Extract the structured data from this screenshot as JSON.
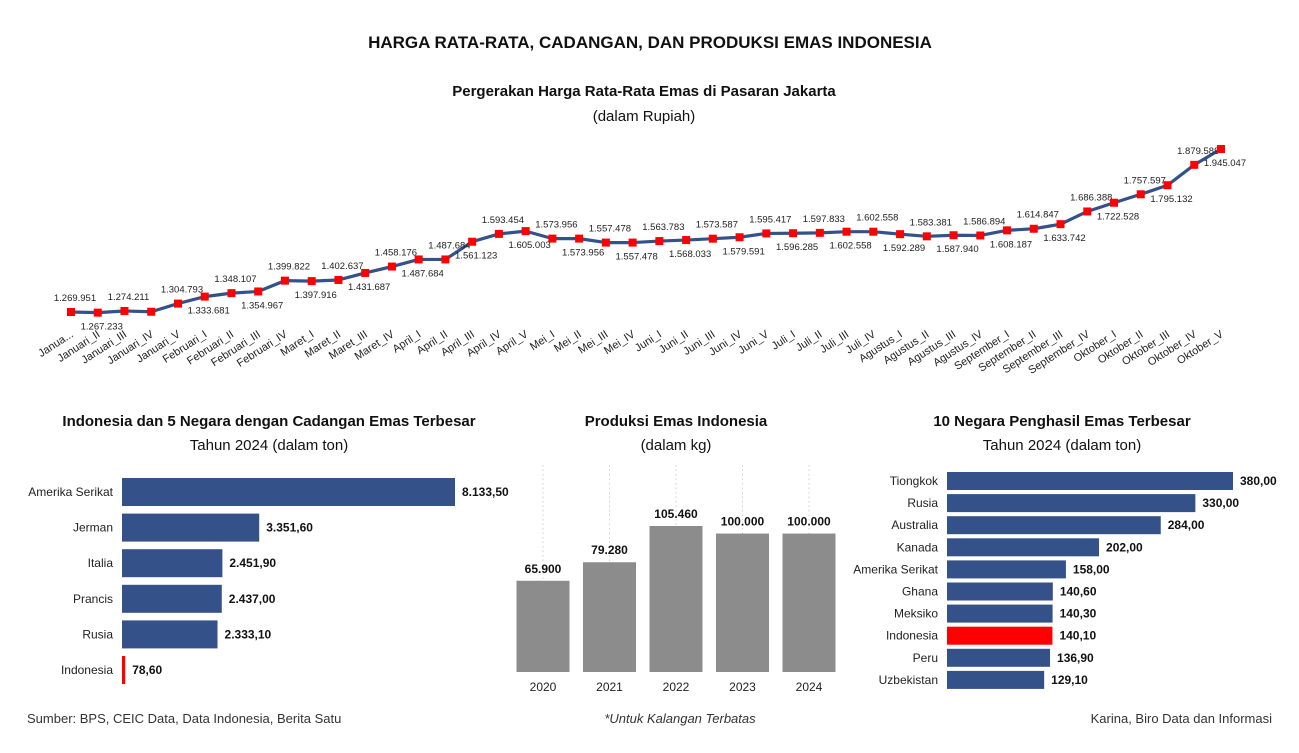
{
  "page_title": "HARGA RATA-RATA, CADANGAN, DAN PRODUKSI EMAS INDONESIA",
  "footer": {
    "source": "Sumber: BPS, CEIC Data, Data Indonesia, Berita Satu",
    "note": "*Untuk Kalangan Terbatas",
    "author": "Karina, Biro Data dan Informasi"
  },
  "colors": {
    "line": "#345289",
    "marker": "#ff0000",
    "bar": "#345289",
    "highlight": "#ff0000",
    "production_bar": "#8c8c8c"
  },
  "chart_data": [
    {
      "type": "line",
      "title": "Pergerakan Harga Rata-Rata Emas di Pasaran Jakarta",
      "subtitle": "(dalam Rupiah)",
      "categories": [
        "Janua...",
        "Januari_II",
        "Januari_III",
        "Januari_IV",
        "Januari_V",
        "Februari_I",
        "Februari_II",
        "Februari_III",
        "Februari_IV",
        "Maret_I",
        "Maret_II",
        "Maret_III",
        "Maret_IV",
        "April_I",
        "April_II",
        "April_III",
        "April_IV",
        "April_V",
        "Mei_I",
        "Mei_II",
        "Mei_III",
        "Mei_IV",
        "Juni_I",
        "Juni_II",
        "Juni_III",
        "Juni_IV",
        "Juni_V",
        "Juli_I",
        "Juli_II",
        "Juli_III",
        "Juli_IV",
        "Agustus_I",
        "Agustus_II",
        "Agustus_III",
        "Agustus_IV",
        "September_I",
        "September_II",
        "September_III",
        "September_IV",
        "Oktober_I",
        "Oktober_II",
        "Oktober_III",
        "Oktober_IV",
        "Oktober_V"
      ],
      "values": [
        1269951,
        1267233,
        1274211,
        1271000,
        1304793,
        1333681,
        1348107,
        1354967,
        1399822,
        1397916,
        1402637,
        1431687,
        1458176,
        1487684,
        1487684,
        1561123,
        1593454,
        1605003,
        1573956,
        1573956,
        1557478,
        1557478,
        1563783,
        1568033,
        1573587,
        1579591,
        1595417,
        1596285,
        1597833,
        1602558,
        1602558,
        1592289,
        1583381,
        1587940,
        1586894,
        1608187,
        1614847,
        1633742,
        1686388,
        1722528,
        1757597,
        1795132,
        1879589,
        1945047
      ],
      "labels": [
        "1.269.951",
        "1.267.233",
        "1.274.211",
        null,
        "1.304.793",
        "1.333.681",
        "1.348.107",
        "1.354.967",
        "1.399.822",
        "1.397.916",
        "1.402.637",
        "1.431.687",
        "1.458.176",
        "1.487.684",
        "1.487.684",
        "1.561.123",
        "1.593.454",
        "1.605.003",
        "1.573.956",
        "1.573.956",
        "1.557.478",
        "1.557.478",
        "1.563.783",
        "1.568.033",
        "1.573.587",
        "1.579.591",
        "1.595.417",
        "1.596.285",
        "1.597.833",
        "1.602.558",
        "1.602.558",
        "1.592.289",
        "1.583.381",
        "1.587.940",
        "1.586.894",
        "1.608.187",
        "1.614.847",
        "1.633.742",
        "1.686.388",
        "1.722.528",
        "1.757.597",
        "1.795.132",
        "1.879.589",
        "1.945.047"
      ],
      "grid": false
    },
    {
      "type": "bar",
      "orientation": "horizontal",
      "title": "Indonesia dan 5 Negara dengan Cadangan Emas Terbesar",
      "subtitle": "Tahun 2024 (dalam ton)",
      "categories": [
        "Amerika Serikat",
        "Jerman",
        "Italia",
        "Prancis",
        "Rusia",
        "Indonesia"
      ],
      "values": [
        8133.5,
        3351.6,
        2451.9,
        2437.0,
        2333.1,
        78.6
      ],
      "labels": [
        "8.133,50",
        "3.351,60",
        "2.451,90",
        "2.437,00",
        "2.333,10",
        "78,60"
      ],
      "highlight": "Indonesia"
    },
    {
      "type": "bar",
      "orientation": "vertical",
      "title": "Produksi Emas Indonesia",
      "subtitle": "(dalam kg)",
      "categories": [
        "2020",
        "2021",
        "2022",
        "2023",
        "2024"
      ],
      "values": [
        65900,
        79280,
        105460,
        100000,
        100000
      ],
      "labels": [
        "65.900",
        "79.280",
        "105.460",
        "100.000",
        "100.000"
      ]
    },
    {
      "type": "bar",
      "orientation": "horizontal",
      "title": "10 Negara Penghasil Emas Terbesar",
      "subtitle": "Tahun 2024 (dalam ton)",
      "categories": [
        "Tiongkok",
        "Rusia",
        "Australia",
        "Kanada",
        "Amerika Serikat",
        "Ghana",
        "Meksiko",
        "Indonesia",
        "Peru",
        "Uzbekistan"
      ],
      "values": [
        380.0,
        330.0,
        284.0,
        202.0,
        158.0,
        140.6,
        140.3,
        140.1,
        136.9,
        129.1
      ],
      "labels": [
        "380,00",
        "330,00",
        "284,00",
        "202,00",
        "158,00",
        "140,60",
        "140,30",
        "140,10",
        "136,90",
        "129,10"
      ],
      "highlight": "Indonesia"
    }
  ]
}
